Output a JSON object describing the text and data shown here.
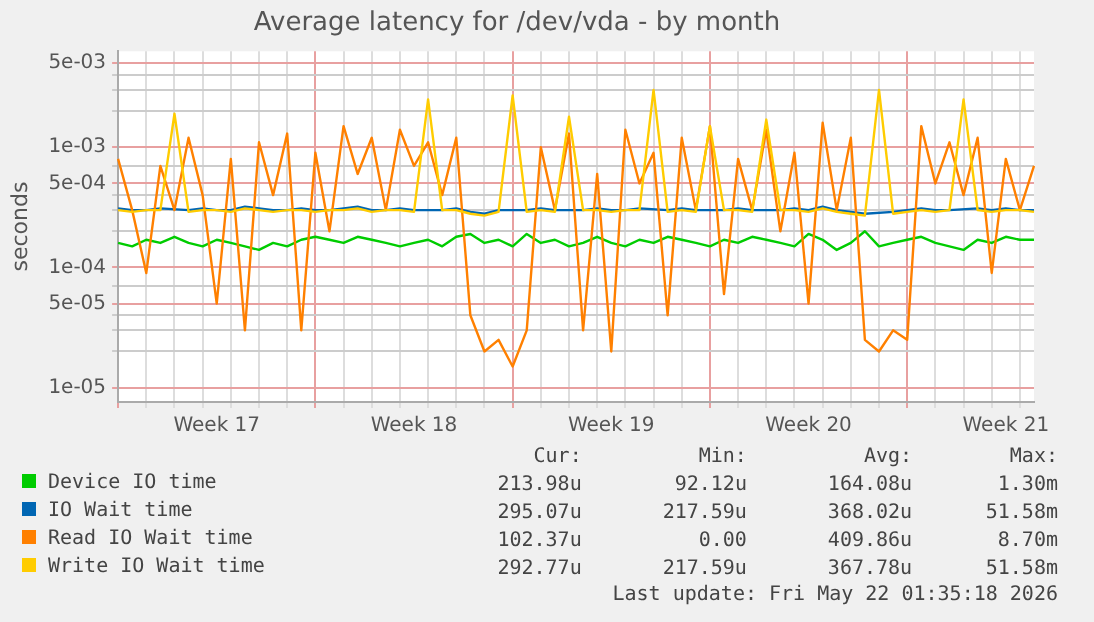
{
  "chart_data": {
    "type": "line",
    "title": "Average latency for /dev/vda - by month",
    "ylabel": "seconds",
    "log": "y",
    "grid": true,
    "legend": "bottom",
    "marker": "none",
    "line_style": "solid",
    "categories": [
      null,
      null,
      null,
      null,
      null,
      null,
      null,
      "Week 17",
      null,
      null,
      null,
      null,
      null,
      null,
      null,
      null,
      null,
      null,
      null,
      null,
      null,
      "Week 18",
      null,
      null,
      null,
      null,
      null,
      null,
      null,
      null,
      null,
      null,
      null,
      null,
      null,
      "Week 19",
      null,
      null,
      null,
      null,
      null,
      null,
      null,
      null,
      null,
      null,
      null,
      null,
      null,
      "Week 20",
      null,
      null,
      null,
      null,
      null,
      null,
      null,
      null,
      null,
      null,
      null,
      null,
      null,
      "Week 21",
      null,
      null
    ],
    "ylim": [
      7.6e-06,
      0.0063
    ],
    "yticks": [
      {
        "value": 1e-05,
        "label": "1e-05"
      },
      {
        "value": 2e-05,
        "label": null
      },
      {
        "value": 3e-05,
        "label": null
      },
      {
        "value": 4e-05,
        "label": null
      },
      {
        "value": 5e-05,
        "label": "5e-05"
      },
      {
        "value": 7e-05,
        "label": null
      },
      {
        "value": 0.0001,
        "label": "1e-04"
      },
      {
        "value": 0.0002,
        "label": null
      },
      {
        "value": 0.0003,
        "label": null
      },
      {
        "value": 0.0004,
        "label": null
      },
      {
        "value": 0.0005,
        "label": "5e-04"
      },
      {
        "value": 0.0007,
        "label": null
      },
      {
        "value": 0.001,
        "label": "1e-03"
      },
      {
        "value": 0.002,
        "label": null
      },
      {
        "value": 0.003,
        "label": null
      },
      {
        "value": 0.004,
        "label": null
      },
      {
        "value": 0.005,
        "label": "5e-03"
      }
    ],
    "series": [
      {
        "name": "Device IO time",
        "color": "#00cc00",
        "values": [
          0.00016,
          0.00015,
          0.00017,
          0.00016,
          0.00018,
          0.00016,
          0.00015,
          0.00017,
          0.00016,
          0.00015,
          0.00014,
          0.00016,
          0.00015,
          0.00017,
          0.00018,
          0.00017,
          0.00016,
          0.00018,
          0.00017,
          0.00016,
          0.00015,
          0.00016,
          0.00017,
          0.00015,
          0.00018,
          0.00019,
          0.00016,
          0.00017,
          0.00015,
          0.00019,
          0.00016,
          0.00017,
          0.00015,
          0.00016,
          0.00018,
          0.00016,
          0.00015,
          0.00017,
          0.00016,
          0.00018,
          0.00017,
          0.00016,
          0.00015,
          0.00017,
          0.00016,
          0.00018,
          0.00017,
          0.00016,
          0.00015,
          0.00019,
          0.00017,
          0.00014,
          0.00016,
          0.0002,
          0.00015,
          0.00016,
          0.00017,
          0.00018,
          0.00016,
          0.00015,
          0.00014,
          0.00017,
          0.00016,
          0.00018,
          0.00017,
          0.00017
        ]
      },
      {
        "name": "IO Wait time",
        "color": "#0066b3",
        "values": [
          0.00031,
          0.0003,
          0.0003,
          0.00031,
          null,
          0.0003,
          0.00031,
          0.0003,
          0.0003,
          0.00032,
          0.00031,
          0.0003,
          0.0003,
          0.00031,
          0.0003,
          0.0003,
          0.00031,
          0.00032,
          0.0003,
          0.0003,
          0.00031,
          0.0003,
          null,
          0.0003,
          0.00031,
          0.00029,
          0.00028,
          0.0003,
          null,
          0.0003,
          0.00031,
          0.0003,
          null,
          0.0003,
          0.00031,
          0.0003,
          0.0003,
          0.00031,
          null,
          0.0003,
          0.00031,
          0.0003,
          null,
          0.0003,
          0.00031,
          0.0003,
          null,
          0.0003,
          0.00031,
          0.0003,
          0.00032,
          0.0003,
          0.00029,
          0.00028,
          null,
          0.00029,
          0.0003,
          0.00031,
          0.0003,
          0.0003,
          null,
          0.00031,
          0.0003,
          0.00031,
          0.0003,
          0.0003
        ]
      },
      {
        "name": "Read IO Wait time",
        "color": "#ff8000",
        "values": [
          0.0008,
          0.0003,
          9e-05,
          0.0007,
          0.0003,
          0.0012,
          0.0004,
          5e-05,
          0.0008,
          3e-05,
          0.0011,
          0.0004,
          0.0013,
          3e-05,
          0.0009,
          0.0002,
          0.0015,
          0.0006,
          0.0012,
          0.0003,
          0.0014,
          0.0007,
          0.0011,
          0.0004,
          0.0012,
          4e-05,
          2e-05,
          2.5e-05,
          1.5e-05,
          3e-05,
          0.001,
          0.0003,
          0.0013,
          3e-05,
          0.0006,
          2e-05,
          0.0014,
          0.0005,
          0.0009,
          4e-05,
          0.0012,
          0.0003,
          0.0015,
          6e-05,
          0.0008,
          0.0003,
          0.0014,
          0.0002,
          0.0009,
          5e-05,
          0.0016,
          0.0003,
          0.0012,
          2.5e-05,
          2e-05,
          3e-05,
          2.5e-05,
          0.0015,
          0.0005,
          0.0011,
          0.0004,
          0.0012,
          9e-05,
          0.0008,
          0.0003,
          0.0007
        ]
      },
      {
        "name": "Write IO Wait time",
        "color": "#ffcc00",
        "values": [
          0.0003,
          0.00029,
          0.0003,
          0.0003,
          0.0019,
          0.00029,
          0.0003,
          0.0003,
          0.00029,
          0.00031,
          0.0003,
          0.00029,
          0.0003,
          0.0003,
          0.00029,
          0.0003,
          0.0003,
          0.00031,
          0.00029,
          0.0003,
          0.0003,
          0.00029,
          0.0025,
          0.0003,
          0.0003,
          0.00028,
          0.00027,
          0.00029,
          0.0027,
          0.00029,
          0.0003,
          0.00029,
          0.0018,
          0.0003,
          0.0003,
          0.00029,
          0.0003,
          0.0003,
          0.003,
          0.00029,
          0.0003,
          0.00029,
          0.0015,
          0.0003,
          0.0003,
          0.00029,
          0.0017,
          0.0003,
          0.0003,
          0.00029,
          0.00031,
          0.00029,
          0.00028,
          0.00027,
          0.003,
          0.00028,
          0.00029,
          0.0003,
          0.00029,
          0.0003,
          0.0025,
          0.0003,
          0.00029,
          0.0003,
          0.0003,
          0.00029
        ]
      }
    ],
    "annotations": [
      "Cur:",
      "Min:",
      "Avg:",
      "Max:",
      "213.98u",
      "92.12u",
      "164.08u",
      "1.30m",
      "295.07u",
      "217.59u",
      "368.02u",
      "51.58m",
      "102.37u",
      "0.00",
      "409.86u",
      "8.70m",
      "292.77u",
      "217.59u",
      "367.78u",
      "51.58m",
      "Last update: Fri May 22 01:35:18 2026"
    ]
  }
}
